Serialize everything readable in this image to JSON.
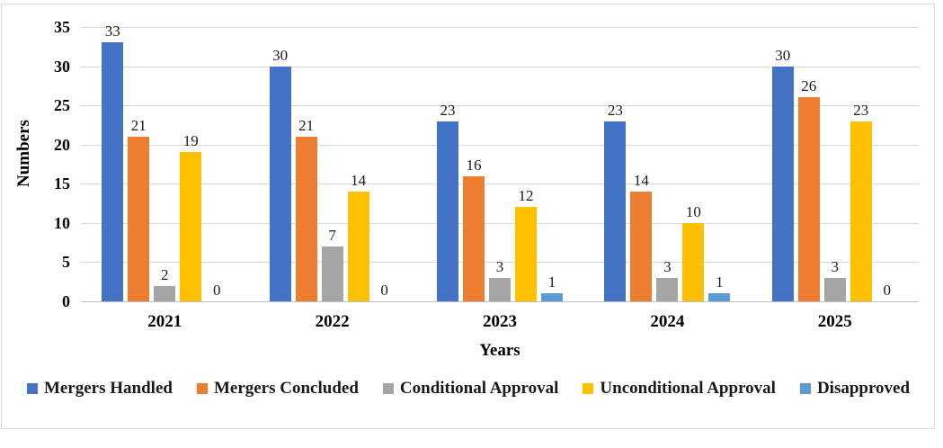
{
  "chart_data": {
    "type": "bar",
    "categories": [
      "2021",
      "2022",
      "2023",
      "2024",
      "2025"
    ],
    "series": [
      {
        "name": "Mergers Handled",
        "color": "#4472C4",
        "values": [
          33,
          30,
          23,
          23,
          30
        ]
      },
      {
        "name": "Mergers Concluded",
        "color": "#ED7D31",
        "values": [
          21,
          21,
          16,
          14,
          26
        ]
      },
      {
        "name": "Conditional Approval",
        "color": "#A5A5A5",
        "values": [
          2,
          7,
          3,
          3,
          3
        ]
      },
      {
        "name": "Unconditional Approval",
        "color": "#FFC000",
        "values": [
          19,
          14,
          12,
          10,
          23
        ]
      },
      {
        "name": "Disapproved",
        "color": "#5B9BD5",
        "values": [
          0,
          0,
          1,
          1,
          0
        ]
      }
    ],
    "title": "",
    "xlabel": "Years",
    "ylabel": "Numbers",
    "ylim": [
      0,
      35
    ],
    "yticks": [
      0,
      5,
      10,
      15,
      20,
      25,
      30,
      35
    ],
    "grid": true,
    "data_labels": true,
    "legend_position": "bottom",
    "gridline_color": "#D9D9D9",
    "axis_line_color": "#BFBFBF",
    "frame_border_color": "#D9D9D9",
    "background_color": "#FFFFFF"
  }
}
